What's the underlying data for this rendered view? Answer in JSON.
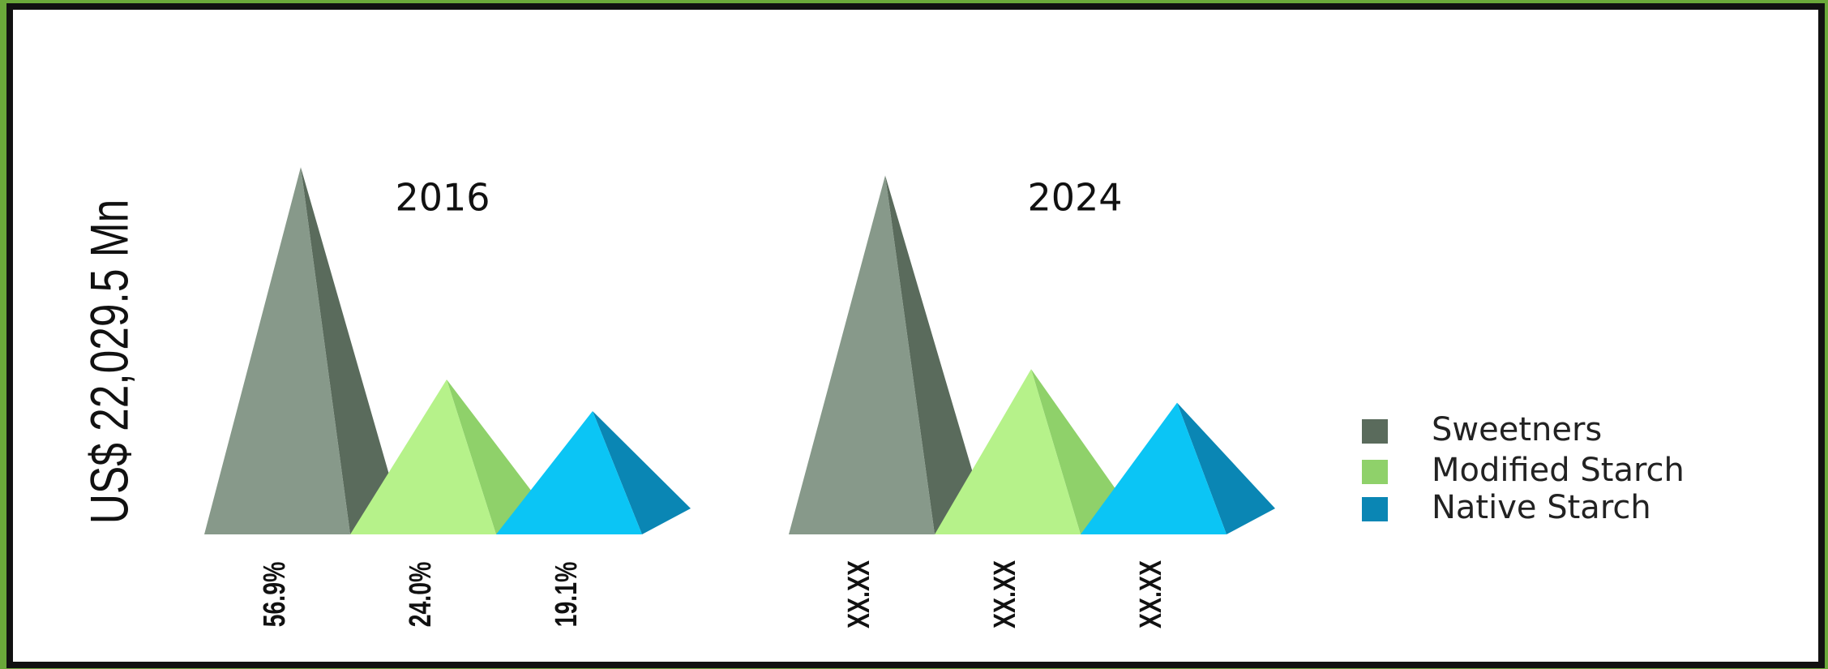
{
  "chart_data": {
    "type": "pyramid",
    "y_label": "US$ 22,029.5 Mn",
    "categories": [
      "2016",
      "2024"
    ],
    "series": [
      {
        "name": "Sweetners",
        "color": "#5a6b5c",
        "values": [
          56.9,
          55.6
        ],
        "value_labels": [
          "56.9%",
          "XX.XX"
        ]
      },
      {
        "name": "Modified Starch",
        "color": "#8fd16a",
        "values": [
          24.0,
          25.6
        ],
        "value_labels": [
          "24.0%",
          "XX.XX"
        ]
      },
      {
        "name": "Native Starch",
        "color": "#0a86b4",
        "values": [
          19.1,
          20.4
        ],
        "value_labels": [
          "19.1%",
          "XX.XX"
        ]
      }
    ],
    "legend": "right"
  }
}
